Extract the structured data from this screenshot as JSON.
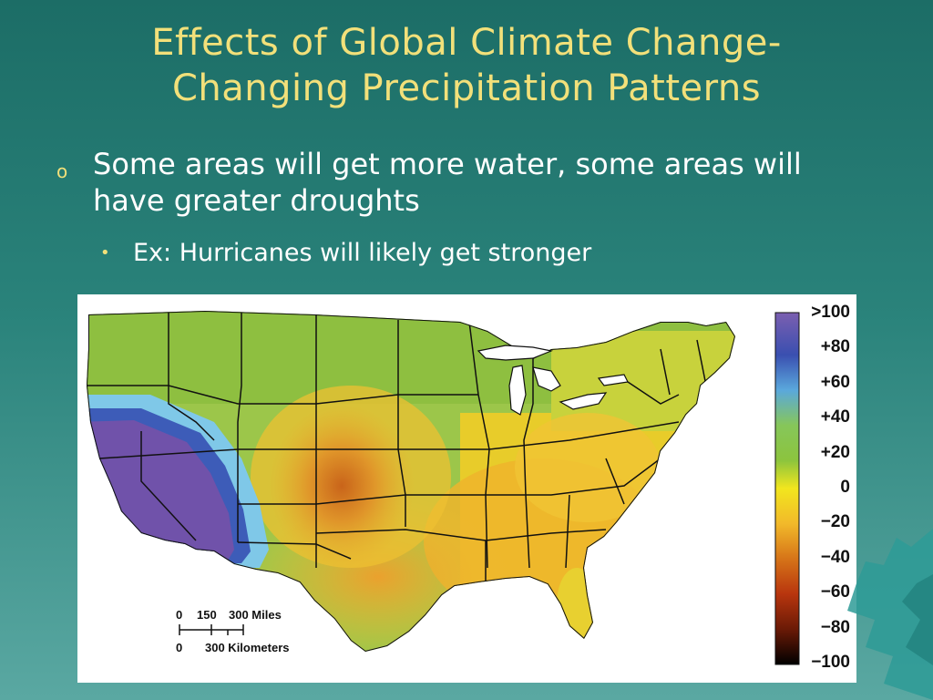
{
  "slide": {
    "title_line1": "Effects of Global Climate Change-",
    "title_line2": "Changing Precipitation Patterns",
    "bullet_marker": "o",
    "bullet1": "Some areas will get more water, some areas will have greater droughts",
    "sub_marker": "•",
    "bullet2": "Ex: Hurricanes will likely get stronger"
  },
  "map": {
    "legend_labels": [
      ">100",
      "+80",
      "+60",
      "+40",
      "+20",
      "0",
      "−20",
      "−40",
      "−60",
      "−80",
      "−100"
    ],
    "legend_colors": [
      "#6a52a8",
      "#3a4fb0",
      "#5aa8dc",
      "#86c65a",
      "#8cc43e",
      "#f2e61e",
      "#f2b92a",
      "#d67418",
      "#b8350e",
      "#6a1a06",
      "#000000"
    ],
    "scale_bar": {
      "miles_ticks": [
        "0",
        "150",
        "300 Miles"
      ],
      "km_ticks": [
        "0",
        "300 Kilometers"
      ]
    }
  }
}
